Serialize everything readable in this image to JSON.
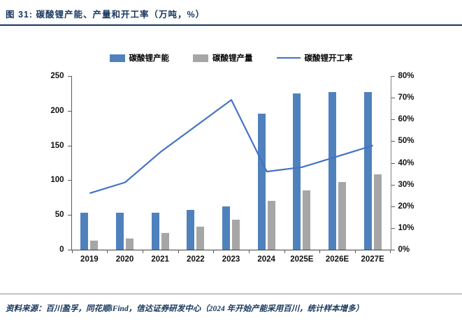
{
  "header": {
    "title": "图 31: 碳酸锂产能、产量和开工率（万吨，%）"
  },
  "footer": {
    "source": "资料来源：百川盈孚，同花顺iFind，信达证券研发中心（2024 年开始产能采用百川，统计样本增多）"
  },
  "colors": {
    "accent": "#17365d",
    "capacity": "#4f81bd",
    "production": "#a6a6a6",
    "utilization": "#4472c4"
  },
  "chart_data": {
    "type": "bar",
    "subtype": "grouped-bars-with-line",
    "title": "碳酸锂产能、产量和开工率（万吨，%）",
    "categories": [
      "2019",
      "2020",
      "2021",
      "2022",
      "2023",
      "2024",
      "2025E",
      "2026E",
      "2027E"
    ],
    "series": [
      {
        "name": "碳酸锂产能",
        "type": "bar",
        "axis": "left",
        "values": [
          53,
          53,
          53,
          57,
          62,
          196,
          225,
          227,
          227
        ]
      },
      {
        "name": "碳酸锂产量",
        "type": "bar",
        "axis": "left",
        "values": [
          13,
          16,
          24,
          33,
          43,
          70,
          85,
          97,
          108
        ]
      },
      {
        "name": "碳酸锂开工率",
        "type": "line",
        "axis": "right",
        "values": [
          26,
          31,
          45,
          57,
          69,
          36,
          38,
          43,
          48
        ]
      }
    ],
    "left_axis": {
      "min": 0,
      "max": 250,
      "ticks": [
        0,
        50,
        100,
        150,
        200,
        250
      ]
    },
    "right_axis": {
      "min": 0,
      "max": 80,
      "ticks": [
        "0%",
        "10%",
        "20%",
        "30%",
        "40%",
        "50%",
        "60%",
        "70%",
        "80%"
      ]
    },
    "legend_position": "top",
    "grid": false
  }
}
